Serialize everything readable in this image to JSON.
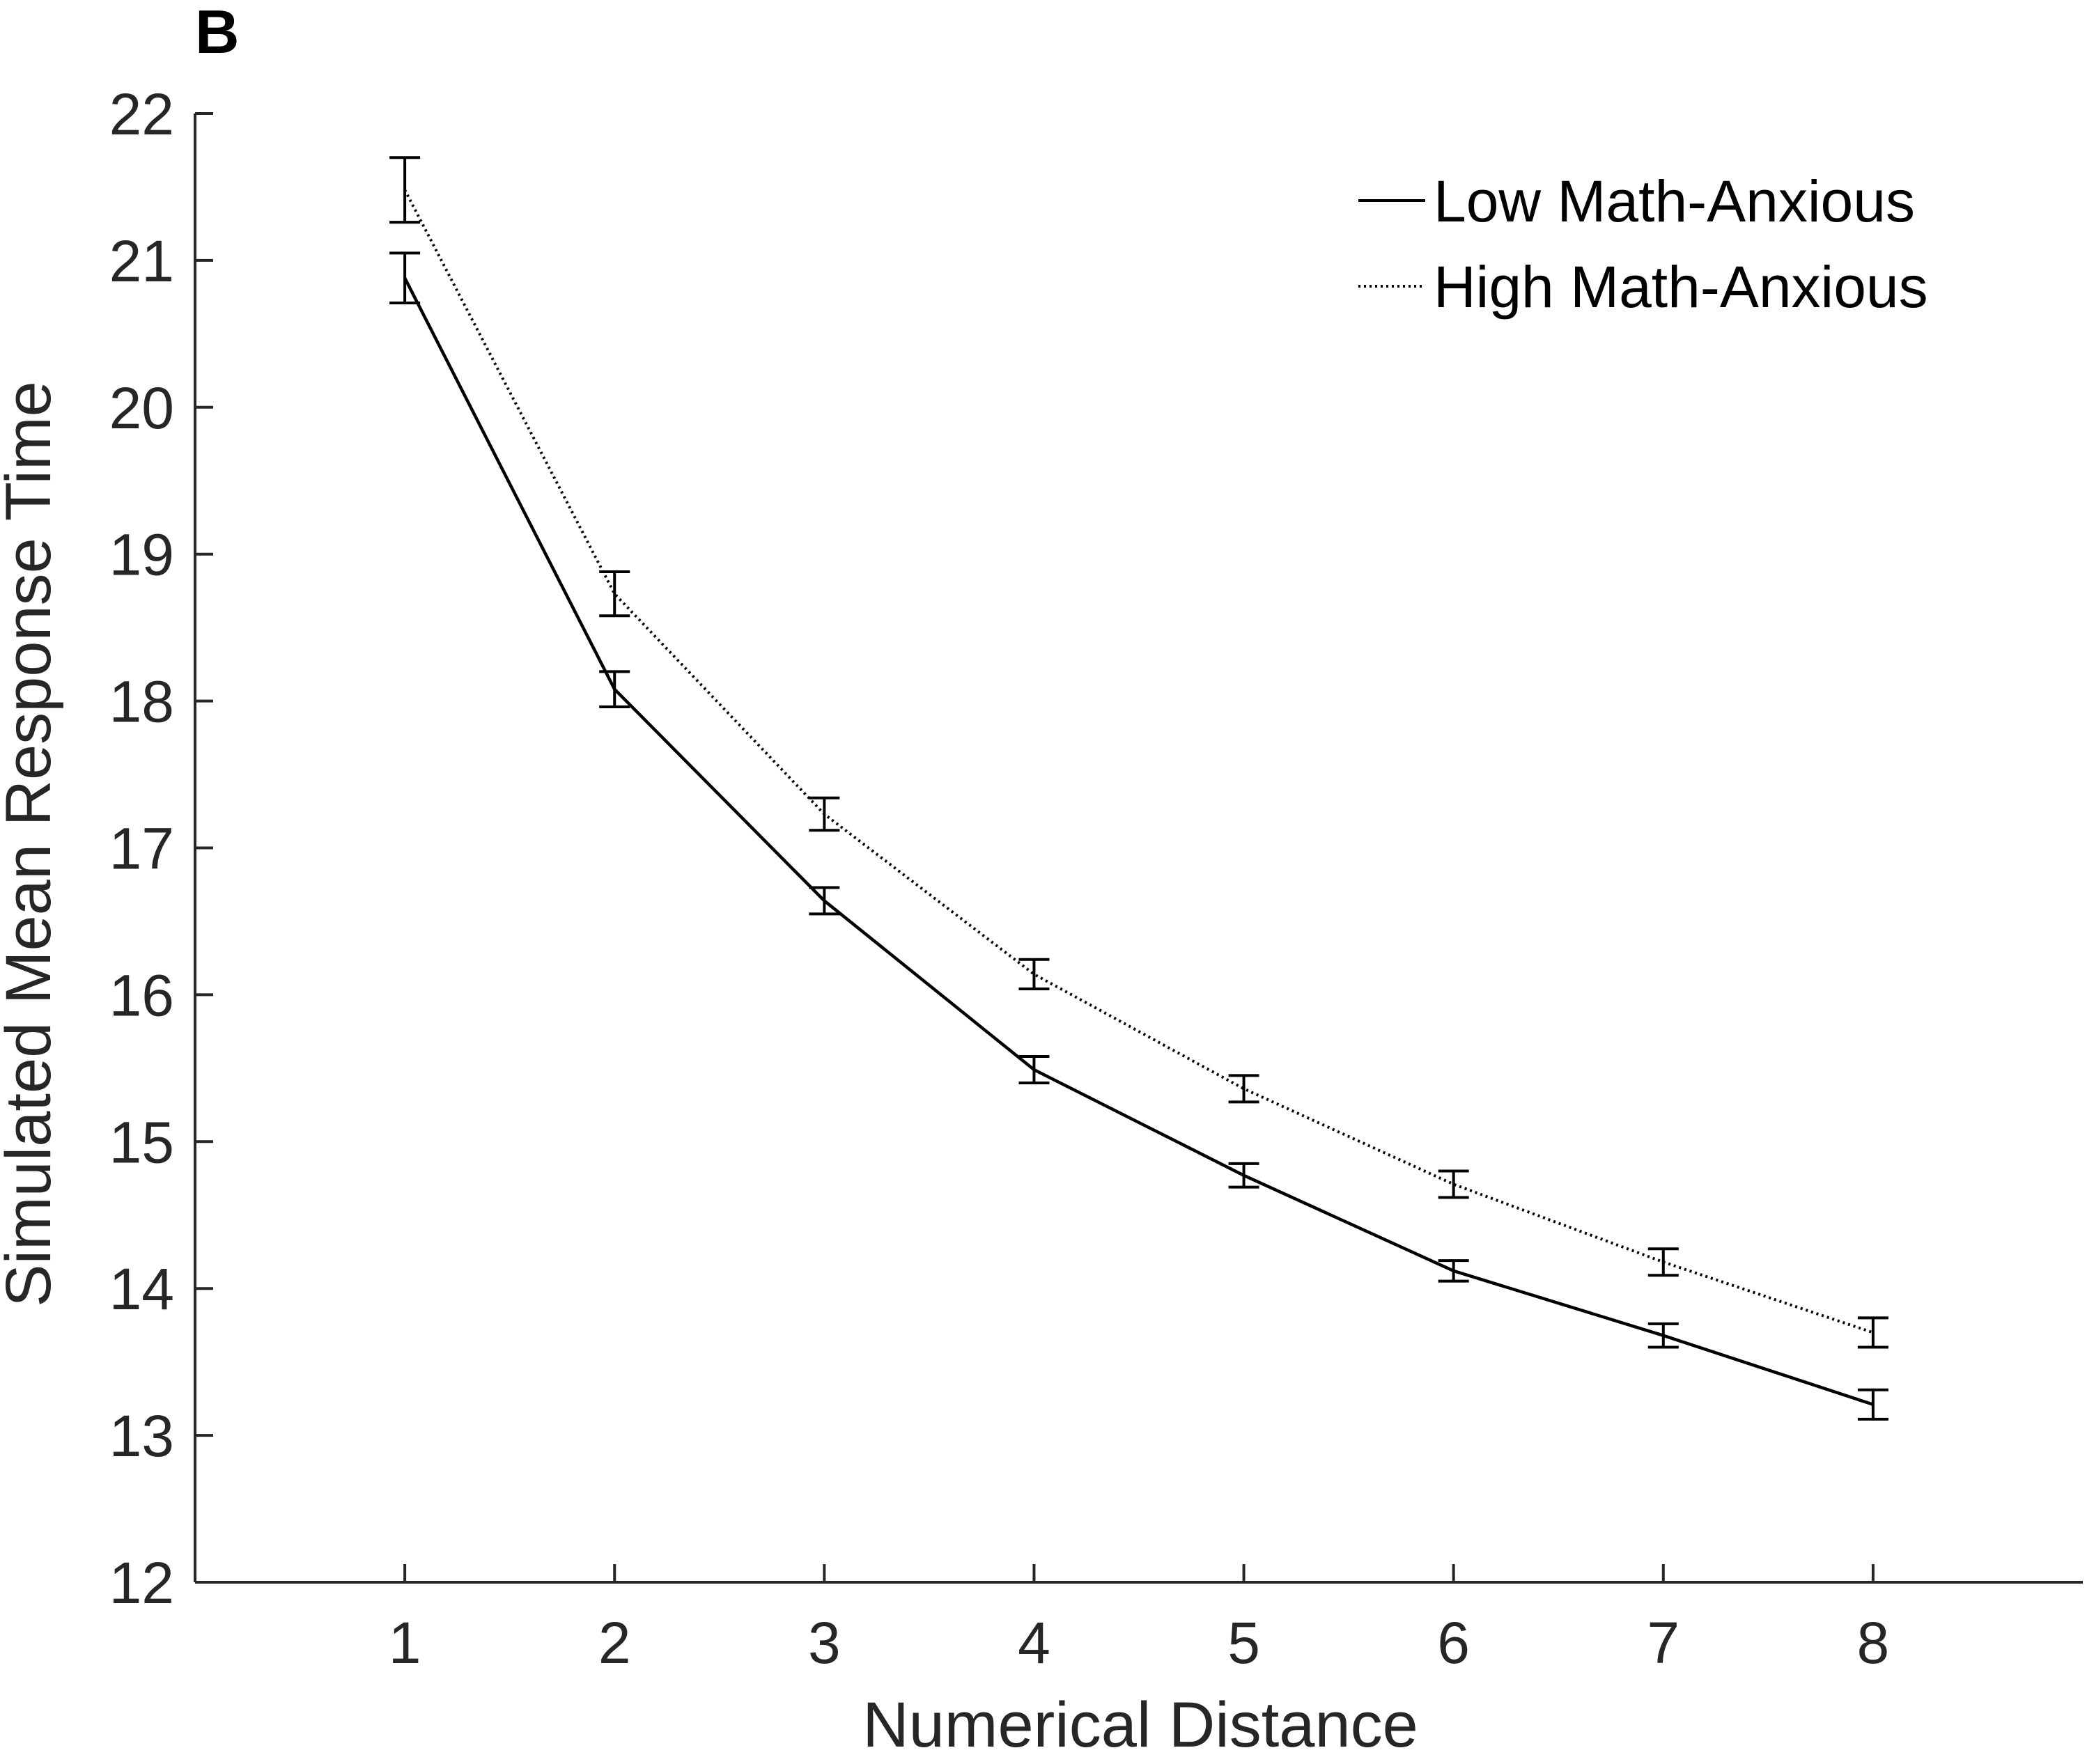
{
  "panel_label": "B",
  "chart_data": {
    "type": "line",
    "xlabel": "Numerical Distance",
    "ylabel": "Simulated Mean Response Time",
    "xlim": [
      0,
      9
    ],
    "ylim": [
      12,
      22
    ],
    "x": [
      1,
      2,
      3,
      4,
      5,
      6,
      7,
      8
    ],
    "x_ticks": [
      1,
      2,
      3,
      4,
      5,
      6,
      7,
      8
    ],
    "y_ticks": [
      12,
      13,
      14,
      15,
      16,
      17,
      18,
      19,
      20,
      21,
      22
    ],
    "grid": false,
    "legend_position": "top-right",
    "series": [
      {
        "name": "Low Math-Anxious",
        "style": "solid",
        "color": "#000000",
        "values": [
          20.88,
          18.08,
          16.64,
          15.49,
          14.77,
          14.12,
          13.68,
          13.21
        ],
        "error": [
          0.17,
          0.12,
          0.09,
          0.09,
          0.08,
          0.07,
          0.08,
          0.1
        ]
      },
      {
        "name": "High Math-Anxious",
        "style": "dotted",
        "color": "#000000",
        "values": [
          21.48,
          18.73,
          17.23,
          16.14,
          15.36,
          14.71,
          14.18,
          13.7
        ],
        "error": [
          0.22,
          0.15,
          0.11,
          0.1,
          0.09,
          0.09,
          0.09,
          0.1
        ]
      }
    ]
  }
}
